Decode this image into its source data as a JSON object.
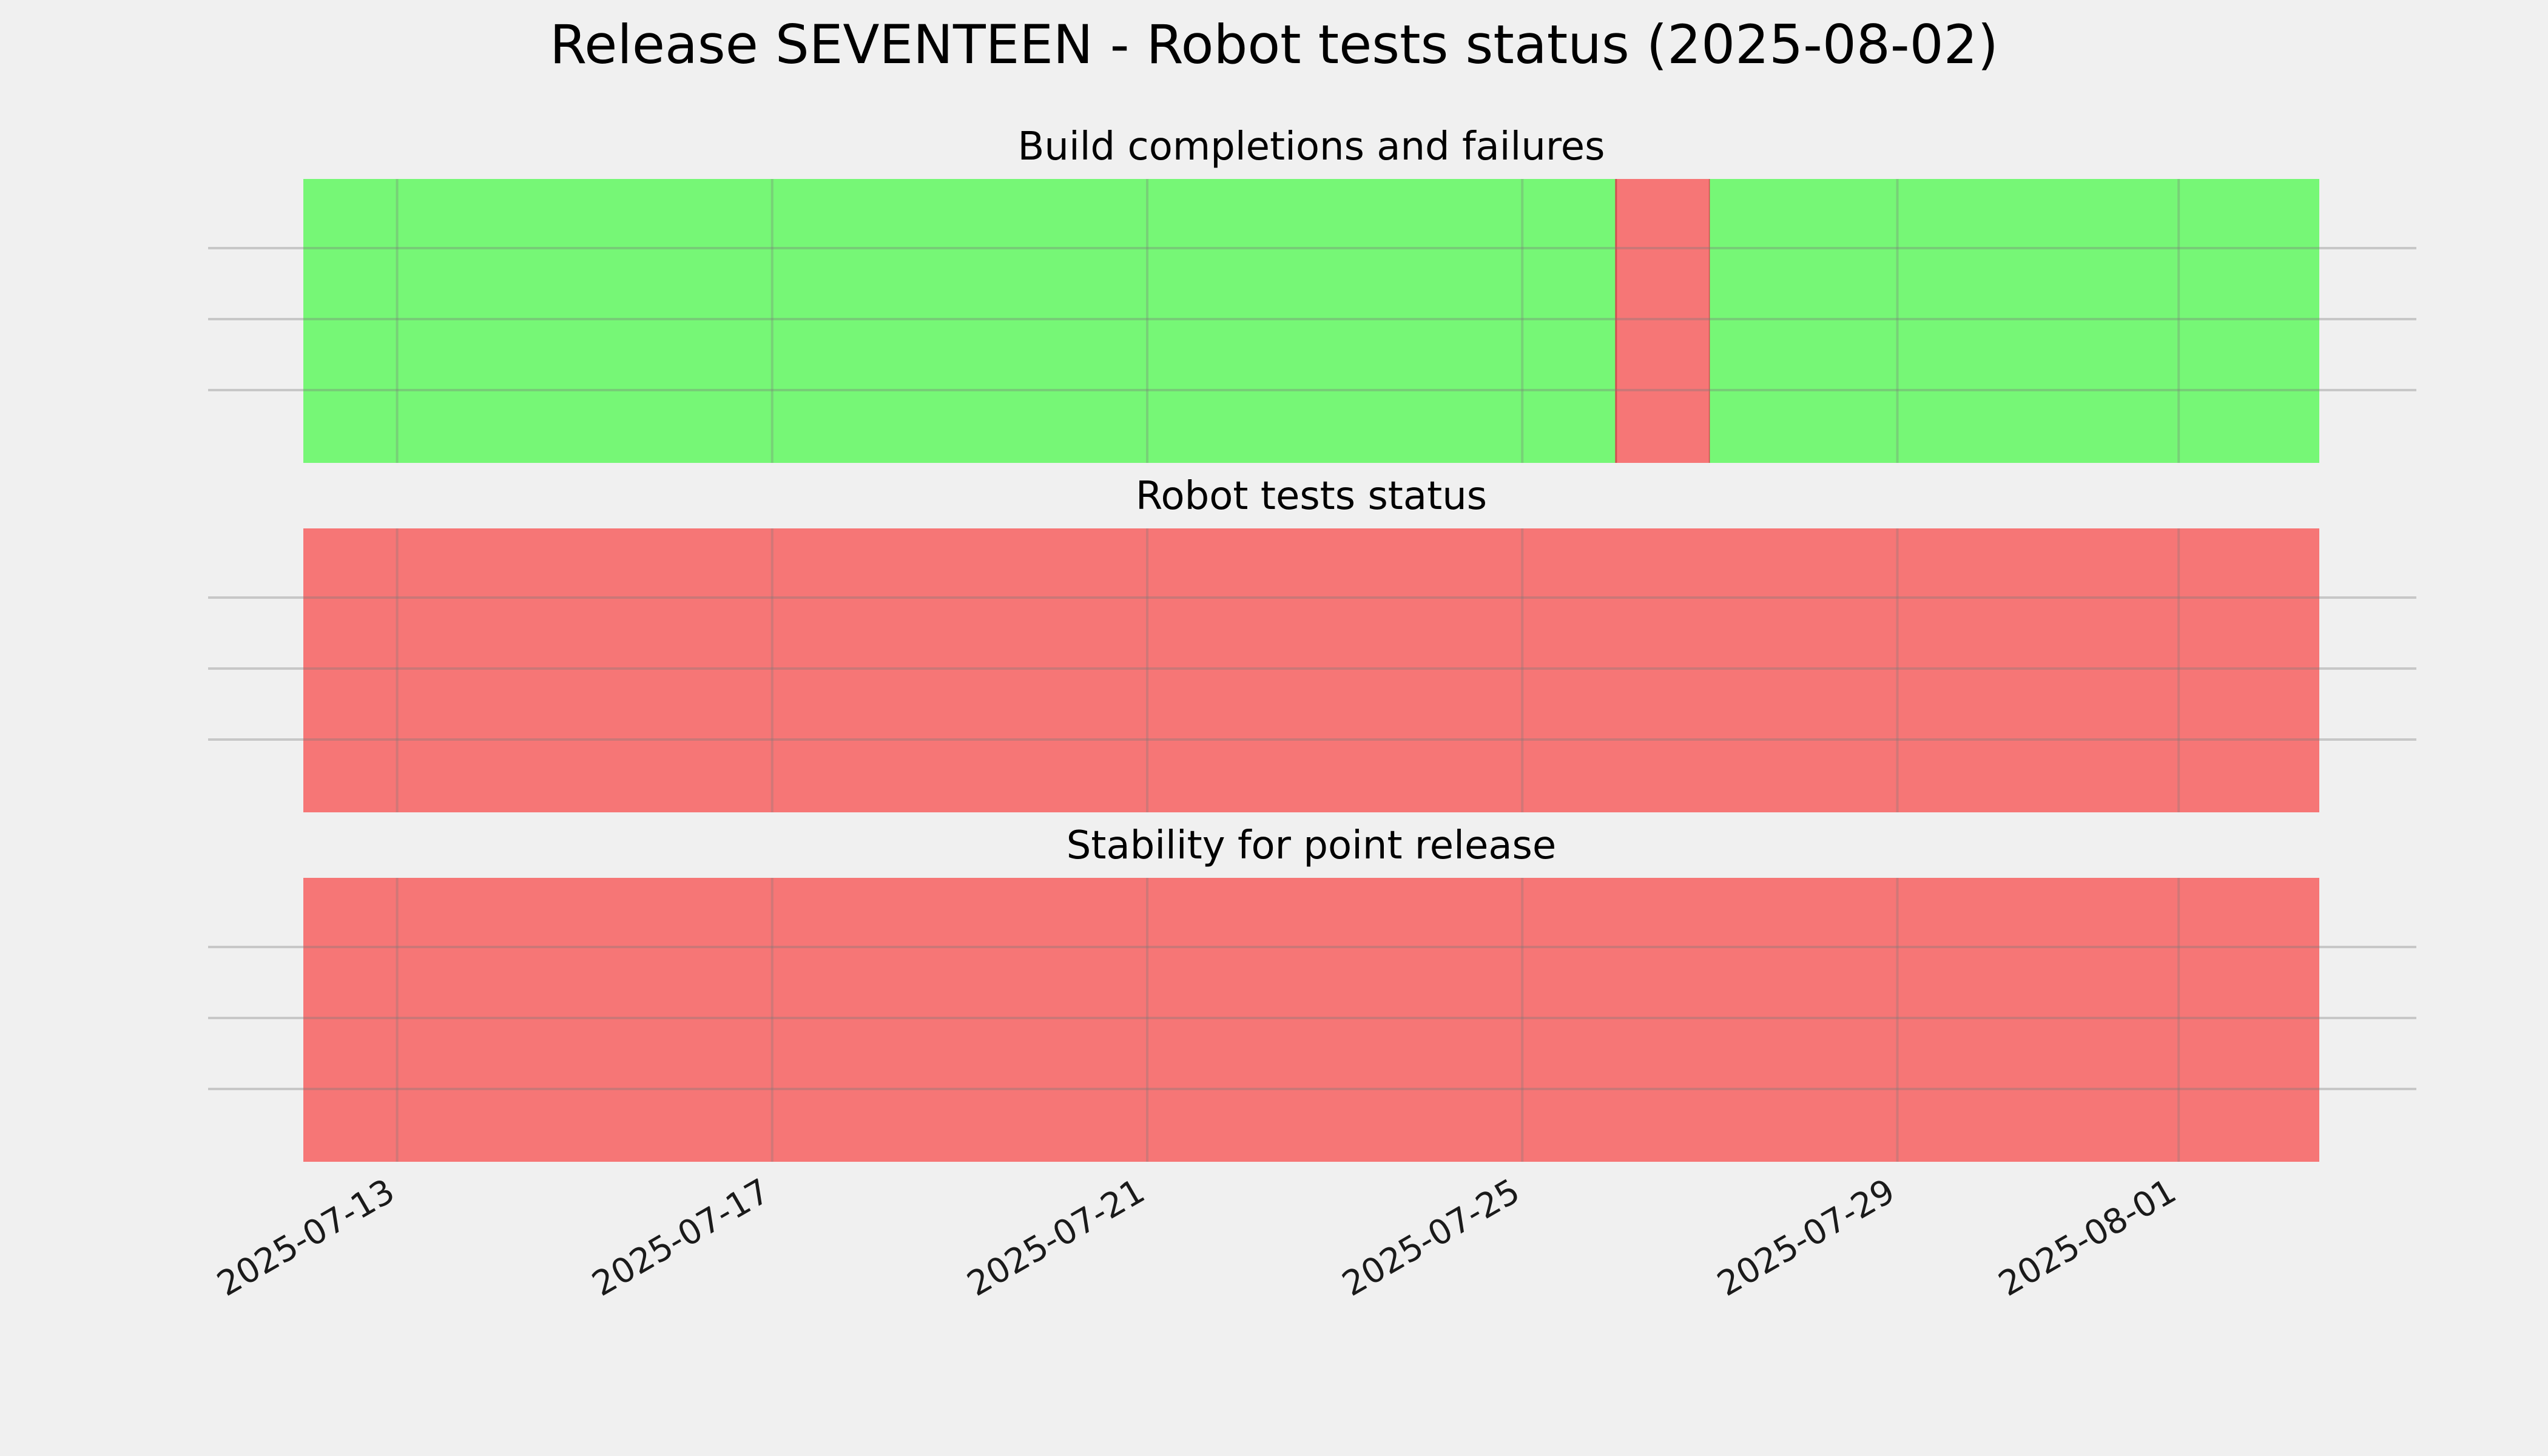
{
  "chart_data": {
    "type": "timeline",
    "title": "Release SEVENTEEN - Robot tests status (2025-08-02)",
    "x_range": [
      "2025-07-12 00:00",
      "2025-08-02 12:00"
    ],
    "x_tick_labels": [
      "2025-07-13",
      "2025-07-17",
      "2025-07-21",
      "2025-07-25",
      "2025-07-29",
      "2025-08-01"
    ],
    "grid": true,
    "colors": {
      "pass": "#76f776",
      "fail": "#f67676",
      "background": "#f0f0f0"
    },
    "panels": [
      {
        "title": "Build completions and failures",
        "segments": [
          {
            "start": "2025-07-12 00:00",
            "end": "2025-07-26 00:00",
            "status": "pass"
          },
          {
            "start": "2025-07-26 00:00",
            "end": "2025-07-27 00:00",
            "status": "fail"
          },
          {
            "start": "2025-07-27 00:00",
            "end": "2025-08-02 12:00",
            "status": "pass"
          }
        ]
      },
      {
        "title": "Robot tests status",
        "segments": [
          {
            "start": "2025-07-12 00:00",
            "end": "2025-08-02 12:00",
            "status": "fail"
          }
        ]
      },
      {
        "title": "Stability for point release",
        "segments": [
          {
            "start": "2025-07-12 00:00",
            "end": "2025-08-02 12:00",
            "status": "fail"
          }
        ]
      }
    ]
  }
}
